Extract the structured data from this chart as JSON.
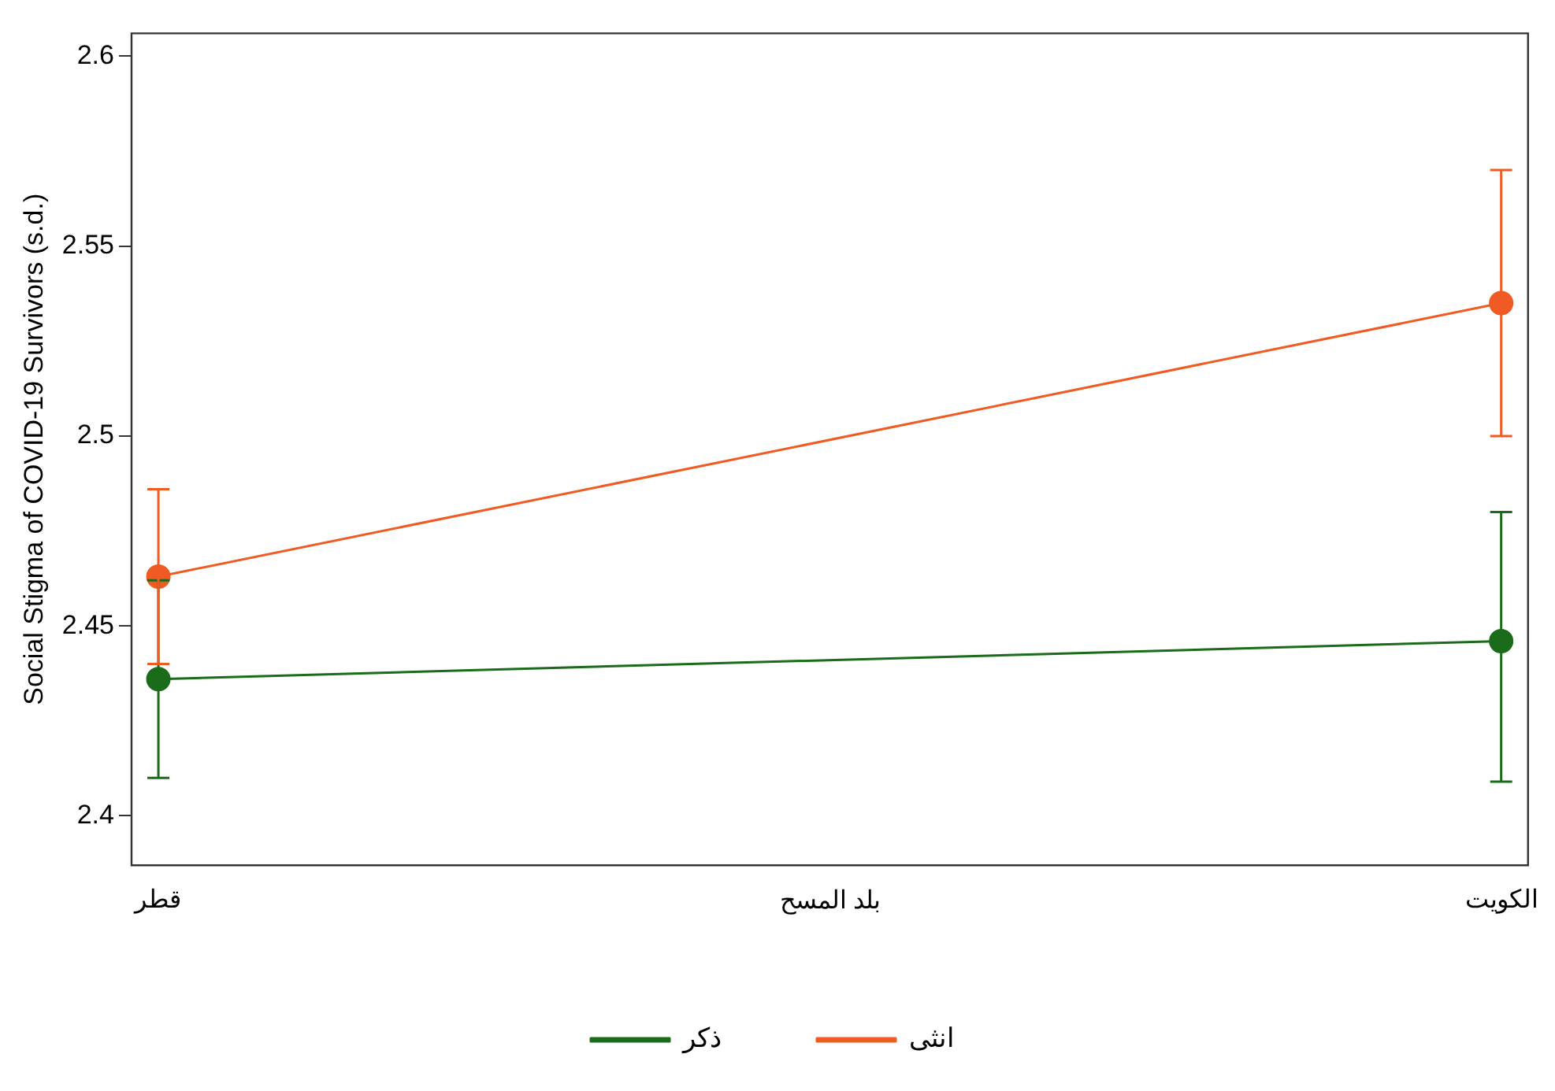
{
  "chart_data": {
    "type": "line",
    "xlabel": "بلد المسح",
    "ylabel": "Social Stigma of COVID-19 Survivors (s.d.)",
    "categories": [
      "قطر",
      "الكويت"
    ],
    "series": [
      {
        "name": "ذكر",
        "color": "#1a6b1a",
        "values": [
          2.436,
          2.446
        ],
        "errors": [
          0.026,
          [
            2.409,
            2.48
          ]
        ]
      },
      {
        "name": "انثى",
        "color": "#f05a23",
        "values": [
          2.463,
          2.535
        ],
        "errors": [
          [
            2.44,
            2.486
          ],
          0.035
        ]
      }
    ],
    "ylim": [
      2.387,
      2.606
    ],
    "yticks": [
      2.4,
      2.45,
      2.5,
      2.55,
      2.6
    ],
    "grid": false,
    "legend": "bottom",
    "marker": "circle",
    "line_style": "solid"
  }
}
